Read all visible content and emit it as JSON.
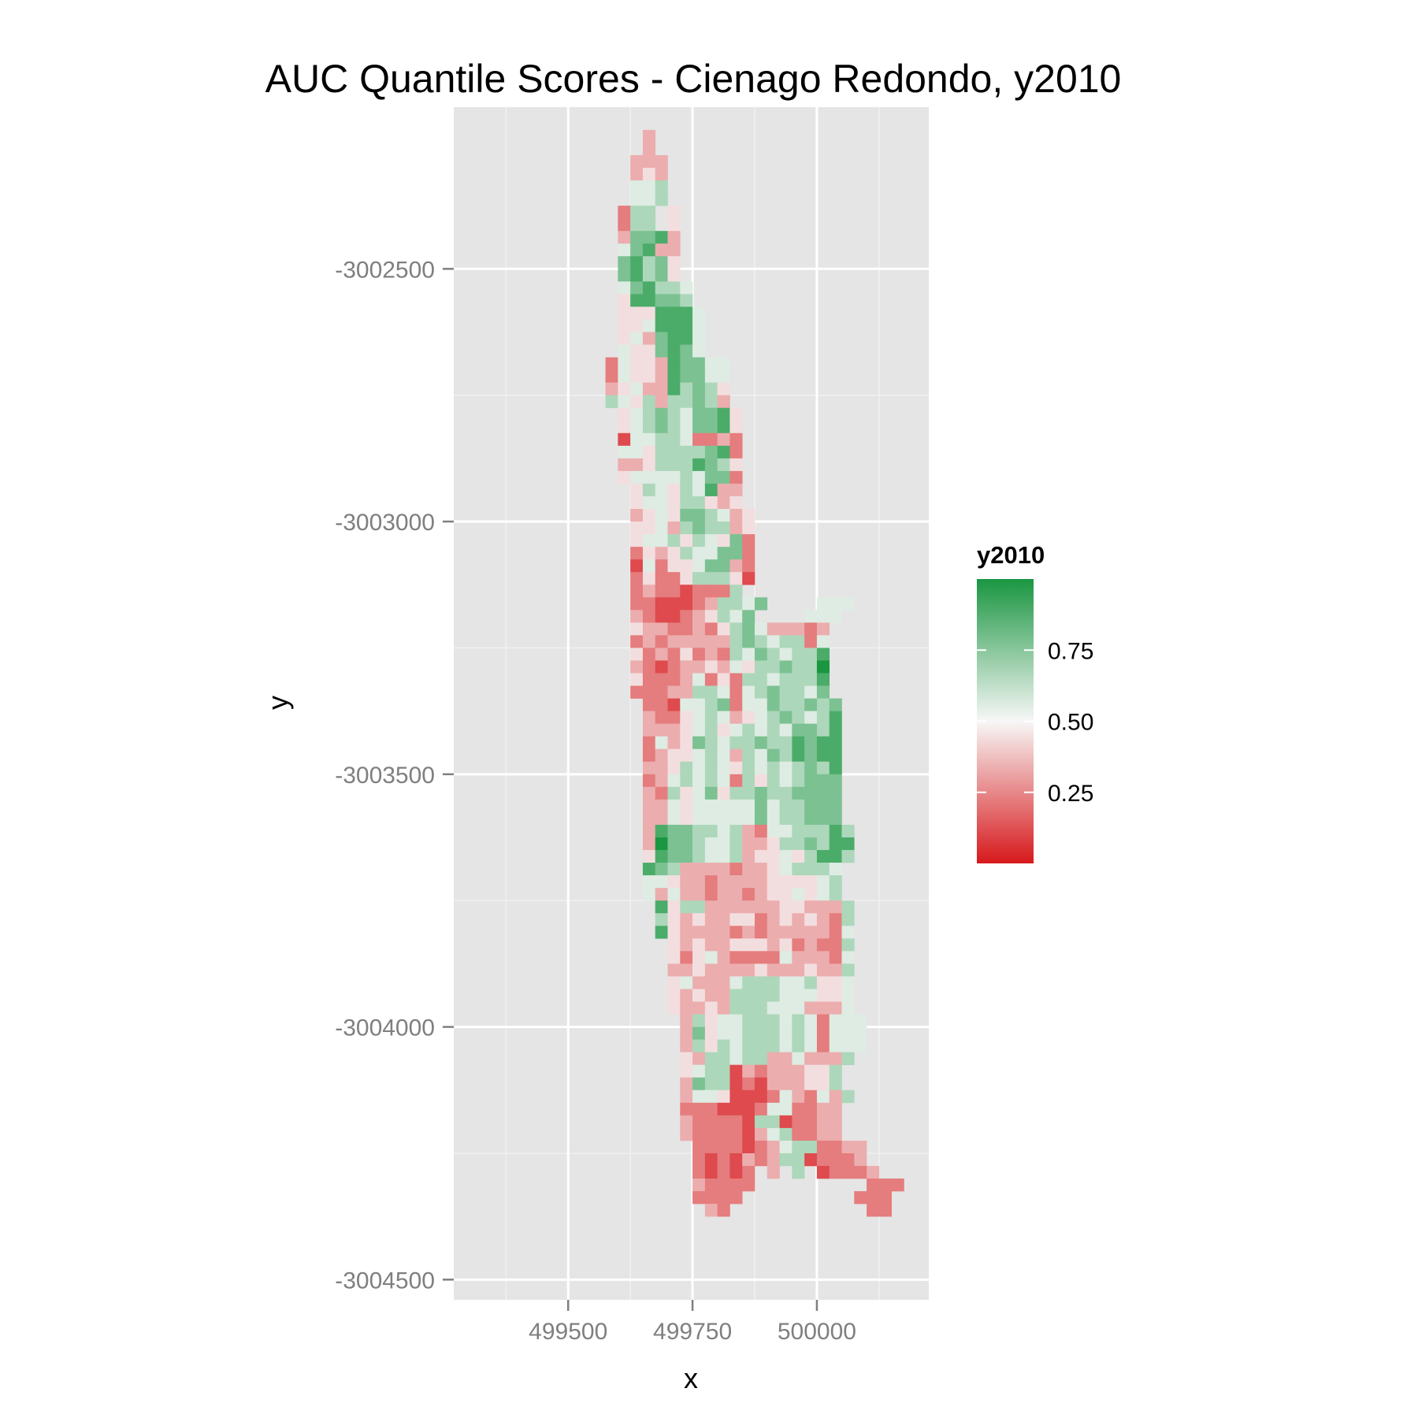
{
  "chart_data": {
    "type": "heatmap",
    "title": "AUC Quantile Scores - Cienago Redondo, y2010",
    "xlabel": "x",
    "ylabel": "y",
    "xlim": [
      499270,
      500225
    ],
    "ylim": [
      -3004540,
      -3002180
    ],
    "x_ticks": [
      499500,
      499750,
      500000
    ],
    "x_minor": [
      499375,
      499625,
      499875,
      500125
    ],
    "y_ticks": [
      -3002500,
      -3003000,
      -3003500,
      -3004000,
      -3004500
    ],
    "y_minor": [
      -3002750,
      -3003250,
      -3003750,
      -3004250
    ],
    "grid": true,
    "cell_size": 25,
    "x_start": 499312.5,
    "y_start": -3002212.5,
    "legend": {
      "title": "y2010",
      "placement": "right",
      "min": 0,
      "max": 1,
      "breaks": [
        0.25,
        0.5,
        0.75
      ],
      "break_labels": [
        "0.25",
        "0.50",
        "0.75"
      ],
      "colors": {
        "low": "#d7191c",
        "mid": "#f7f7f7",
        "high": "#1a9641"
      }
    },
    "values": [
      "...................................",
      "..............3....................",
      "..............3....................",
      ".............333...................",
      ".............343...................",
      ".............556...................",
      ".............556...................",
      "............266.4..................",
      "............266.4..................",
      "............37783..................",
      "............57833..................",
      "............78674..................",
      "............78674..................",
      "............578665.................",
      "............488776.................",
      "............4448885................",
      "............4458885................",
      "............4537885................",
      "............5447875................",
      "...........2544387755..............",
      "...........2544387755..............",
      "...........3453386764..............",
      "...........6546366763..............",
      "............4567657784.............",
      "............4567657784.............",
      "............1556652232.............",
      "............5546666782.............",
      "............3346668764.............",
      "............4555565772.............",
      ".............465465833.............",
      ".............455466434.............",
      ".............3454776534............",
      ".............4453676634............",
      ".............4556465472............",
      ".............2434655772............",
      ".............1524457732............",
      ".............2422466641............",
      ".............232212226............",
      ".............22111236657....555.....",
      ".............3211234657....555.....",
      ".............4332232467533323......",
      ".............2323333367656625......",
      ".............4232423265765668......",
      ".............3212334354667669......",
      ".............4222352426656668......",
      ".............2223366525676657......",
      "..............2215567255766767.....",
      "..............3224565345676568.....",
      "..............3334564565657768.....",
      "..............2534765667668788.....",
      "..............2344565365768788.....",
      "..............3346565465656768.....",
      "..............2356565264656777.....",
      "..............3264574667667777.....",
      "..............3354555557566777.....",
      "..............3354555557566777.....",
      "..............38776656325566686....",
      "..............39776556334667688....",
      "..............48776556344546886....",
      "..............8763333233456665.....",
      "..............5543323333444456.....",
      "..............5353323323445456.....",
      "...............8466333333443336....",
      "...............6434334423434326....",
      "...............8433332323333325....",
      "................434334443423226....",
      "................424532222533325....",
      "................334333343334336....",
      "................453335666556445....",
      "................434336666555445....",
      "................433436665553335....",
      ".................364556665652555...",
      ".................374556665652555...",
      ".................364656665652555...",
      ".................43665663353336.....",
      ".................4566132333446.....",
      ".................3766121333446.....",
      ".................35541112532536....",
      ".................2221112552233.....",
      ".................3222216612233.....",
      ".................3222213562233.....",
      "..................22221235662233...",
      "..................21213236612223...",
      "..................21212.3.6.12223..",
      "..................32222.........222.",
      "..................2222.........222..",
      "...................32...........22..",
      "..................................",
      "...................................."
    ],
    "values_note_skip": true
  }
}
